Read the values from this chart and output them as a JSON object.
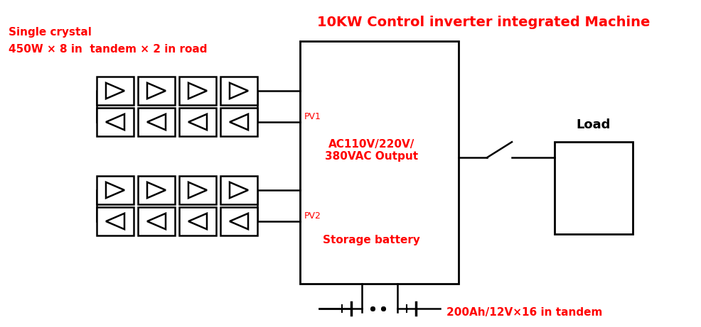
{
  "bg_color": "#ffffff",
  "red_color": "#ff0000",
  "black_color": "#000000",
  "title_top": "10KW Control inverter integrated Machine",
  "label_single_crystal": "Single crystal",
  "label_panel_spec": "450W × 8 in  tandem × 2 in road",
  "label_pv1": "PV1",
  "label_pv2": "PV2",
  "label_ac_output": "AC110V/220V/\n380VAC Output",
  "label_storage": "Storage battery",
  "label_battery_spec": "200Ah/12V×16 in tandem",
  "label_load": "Load"
}
